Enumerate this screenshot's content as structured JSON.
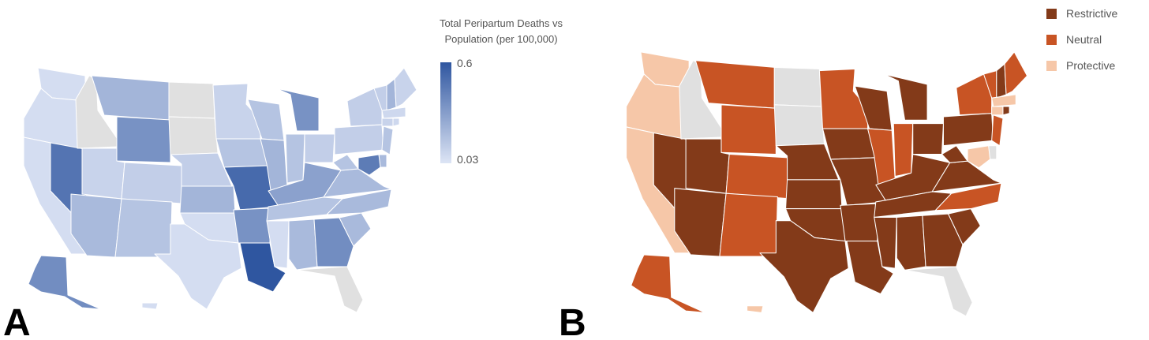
{
  "panelA": {
    "label": "A",
    "legend": {
      "title_line1": "Total Peripartum Deaths vs",
      "title_line2": "Population (per 100,000)",
      "max_label": "0.6",
      "min_label": "0.03",
      "color_max": "#2f56a0",
      "color_min": "#dde5f5"
    },
    "no_data_color": "#e0e0e0"
  },
  "panelB": {
    "label": "B",
    "legend": [
      {
        "label": "Restrictive",
        "color": "#833a19"
      },
      {
        "label": "Neutral",
        "color": "#c85424"
      },
      {
        "label": "Protective",
        "color": "#f6c7a8"
      }
    ],
    "no_data_color": "#e0e0e0"
  },
  "states": {
    "WA": {
      "rate": 0.06,
      "policy": "Protective"
    },
    "OR": {
      "rate": 0.06,
      "policy": "Protective"
    },
    "CA": {
      "rate": 0.06,
      "policy": "Protective"
    },
    "NV": {
      "rate": 0.48,
      "policy": "Restrictive"
    },
    "ID": {
      "rate": null,
      "policy": null
    },
    "MT": {
      "rate": 0.22,
      "policy": "Neutral"
    },
    "WY": {
      "rate": 0.36,
      "policy": "Neutral"
    },
    "UT": {
      "rate": 0.1,
      "policy": "Restrictive"
    },
    "AZ": {
      "rate": 0.2,
      "policy": "Restrictive"
    },
    "CO": {
      "rate": 0.12,
      "policy": "Neutral"
    },
    "NM": {
      "rate": 0.16,
      "policy": "Neutral"
    },
    "ND": {
      "rate": null,
      "policy": null
    },
    "SD": {
      "rate": null,
      "policy": null
    },
    "NE": {
      "rate": 0.12,
      "policy": "Restrictive"
    },
    "KS": {
      "rate": 0.22,
      "policy": "Restrictive"
    },
    "OK": {
      "rate": 0.06,
      "policy": "Restrictive"
    },
    "TX": {
      "rate": 0.06,
      "policy": "Restrictive"
    },
    "MN": {
      "rate": 0.1,
      "policy": "Neutral"
    },
    "IA": {
      "rate": 0.16,
      "policy": "Restrictive"
    },
    "MO": {
      "rate": 0.52,
      "policy": "Restrictive"
    },
    "AR": {
      "rate": 0.36,
      "policy": "Restrictive"
    },
    "LA": {
      "rate": 0.6,
      "policy": "Restrictive"
    },
    "WI": {
      "rate": 0.16,
      "policy": "Restrictive"
    },
    "IL": {
      "rate": 0.22,
      "policy": "Neutral"
    },
    "MI": {
      "rate": 0.36,
      "policy": "Restrictive"
    },
    "IN": {
      "rate": 0.16,
      "policy": "Neutral"
    },
    "OH": {
      "rate": 0.12,
      "policy": "Restrictive"
    },
    "KY": {
      "rate": 0.3,
      "policy": "Restrictive"
    },
    "TN": {
      "rate": 0.16,
      "policy": "Restrictive"
    },
    "MS": {
      "rate": 0.06,
      "policy": "Restrictive"
    },
    "AL": {
      "rate": 0.2,
      "policy": "Restrictive"
    },
    "GA": {
      "rate": 0.38,
      "policy": "Restrictive"
    },
    "FL": {
      "rate": null,
      "policy": null
    },
    "SC": {
      "rate": 0.2,
      "policy": "Restrictive"
    },
    "NC": {
      "rate": 0.2,
      "policy": "Neutral"
    },
    "VA": {
      "rate": 0.2,
      "policy": "Restrictive"
    },
    "WV": {
      "rate": 0.16,
      "policy": "Restrictive"
    },
    "PA": {
      "rate": 0.12,
      "policy": "Restrictive"
    },
    "NY": {
      "rate": 0.12,
      "policy": "Neutral"
    },
    "VT": {
      "rate": 0.12,
      "policy": "Neutral"
    },
    "NH": {
      "rate": 0.22,
      "policy": "Restrictive"
    },
    "ME": {
      "rate": 0.1,
      "policy": "Neutral"
    },
    "MA": {
      "rate": 0.08,
      "policy": "Protective"
    },
    "CT": {
      "rate": 0.1,
      "policy": "Protective"
    },
    "RI": {
      "rate": 0.08,
      "policy": "Restrictive"
    },
    "NJ": {
      "rate": 0.16,
      "policy": "Neutral"
    },
    "DE": {
      "rate": 0.2,
      "policy": null
    },
    "MD": {
      "rate": 0.45,
      "policy": "Protective"
    },
    "AK": {
      "rate": 0.38,
      "policy": "Neutral"
    },
    "HI": {
      "rate": 0.06,
      "policy": "Protective"
    }
  }
}
